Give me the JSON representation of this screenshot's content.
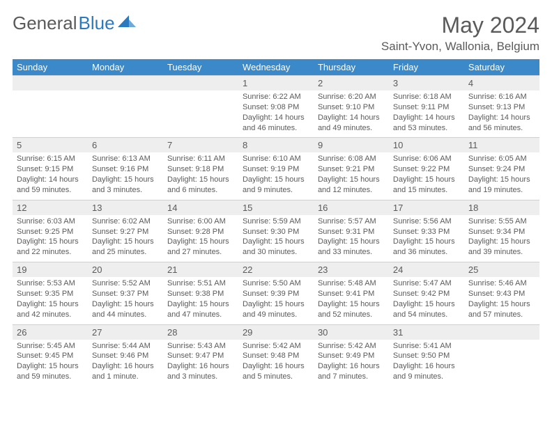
{
  "logo": {
    "textGray": "General",
    "textBlue": "Blue"
  },
  "title": "May 2024",
  "location": "Saint-Yvon, Wallonia, Belgium",
  "colors": {
    "headerBg": "#3b89c9",
    "headerText": "#ffffff",
    "daynumBg": "#eeeeee",
    "border": "#cfcfcf",
    "bodyText": "#5a5a5a",
    "logoBlue": "#2b7ac0"
  },
  "dayNames": [
    "Sunday",
    "Monday",
    "Tuesday",
    "Wednesday",
    "Thursday",
    "Friday",
    "Saturday"
  ],
  "weeks": [
    [
      null,
      null,
      null,
      {
        "n": "1",
        "sr": "6:22 AM",
        "ss": "9:08 PM",
        "dl": "14 hours and 46 minutes."
      },
      {
        "n": "2",
        "sr": "6:20 AM",
        "ss": "9:10 PM",
        "dl": "14 hours and 49 minutes."
      },
      {
        "n": "3",
        "sr": "6:18 AM",
        "ss": "9:11 PM",
        "dl": "14 hours and 53 minutes."
      },
      {
        "n": "4",
        "sr": "6:16 AM",
        "ss": "9:13 PM",
        "dl": "14 hours and 56 minutes."
      }
    ],
    [
      {
        "n": "5",
        "sr": "6:15 AM",
        "ss": "9:15 PM",
        "dl": "14 hours and 59 minutes."
      },
      {
        "n": "6",
        "sr": "6:13 AM",
        "ss": "9:16 PM",
        "dl": "15 hours and 3 minutes."
      },
      {
        "n": "7",
        "sr": "6:11 AM",
        "ss": "9:18 PM",
        "dl": "15 hours and 6 minutes."
      },
      {
        "n": "8",
        "sr": "6:10 AM",
        "ss": "9:19 PM",
        "dl": "15 hours and 9 minutes."
      },
      {
        "n": "9",
        "sr": "6:08 AM",
        "ss": "9:21 PM",
        "dl": "15 hours and 12 minutes."
      },
      {
        "n": "10",
        "sr": "6:06 AM",
        "ss": "9:22 PM",
        "dl": "15 hours and 15 minutes."
      },
      {
        "n": "11",
        "sr": "6:05 AM",
        "ss": "9:24 PM",
        "dl": "15 hours and 19 minutes."
      }
    ],
    [
      {
        "n": "12",
        "sr": "6:03 AM",
        "ss": "9:25 PM",
        "dl": "15 hours and 22 minutes."
      },
      {
        "n": "13",
        "sr": "6:02 AM",
        "ss": "9:27 PM",
        "dl": "15 hours and 25 minutes."
      },
      {
        "n": "14",
        "sr": "6:00 AM",
        "ss": "9:28 PM",
        "dl": "15 hours and 27 minutes."
      },
      {
        "n": "15",
        "sr": "5:59 AM",
        "ss": "9:30 PM",
        "dl": "15 hours and 30 minutes."
      },
      {
        "n": "16",
        "sr": "5:57 AM",
        "ss": "9:31 PM",
        "dl": "15 hours and 33 minutes."
      },
      {
        "n": "17",
        "sr": "5:56 AM",
        "ss": "9:33 PM",
        "dl": "15 hours and 36 minutes."
      },
      {
        "n": "18",
        "sr": "5:55 AM",
        "ss": "9:34 PM",
        "dl": "15 hours and 39 minutes."
      }
    ],
    [
      {
        "n": "19",
        "sr": "5:53 AM",
        "ss": "9:35 PM",
        "dl": "15 hours and 42 minutes."
      },
      {
        "n": "20",
        "sr": "5:52 AM",
        "ss": "9:37 PM",
        "dl": "15 hours and 44 minutes."
      },
      {
        "n": "21",
        "sr": "5:51 AM",
        "ss": "9:38 PM",
        "dl": "15 hours and 47 minutes."
      },
      {
        "n": "22",
        "sr": "5:50 AM",
        "ss": "9:39 PM",
        "dl": "15 hours and 49 minutes."
      },
      {
        "n": "23",
        "sr": "5:48 AM",
        "ss": "9:41 PM",
        "dl": "15 hours and 52 minutes."
      },
      {
        "n": "24",
        "sr": "5:47 AM",
        "ss": "9:42 PM",
        "dl": "15 hours and 54 minutes."
      },
      {
        "n": "25",
        "sr": "5:46 AM",
        "ss": "9:43 PM",
        "dl": "15 hours and 57 minutes."
      }
    ],
    [
      {
        "n": "26",
        "sr": "5:45 AM",
        "ss": "9:45 PM",
        "dl": "15 hours and 59 minutes."
      },
      {
        "n": "27",
        "sr": "5:44 AM",
        "ss": "9:46 PM",
        "dl": "16 hours and 1 minute."
      },
      {
        "n": "28",
        "sr": "5:43 AM",
        "ss": "9:47 PM",
        "dl": "16 hours and 3 minutes."
      },
      {
        "n": "29",
        "sr": "5:42 AM",
        "ss": "9:48 PM",
        "dl": "16 hours and 5 minutes."
      },
      {
        "n": "30",
        "sr": "5:42 AM",
        "ss": "9:49 PM",
        "dl": "16 hours and 7 minutes."
      },
      {
        "n": "31",
        "sr": "5:41 AM",
        "ss": "9:50 PM",
        "dl": "16 hours and 9 minutes."
      },
      null
    ]
  ],
  "labels": {
    "sunrise": "Sunrise:",
    "sunset": "Sunset:",
    "daylight": "Daylight:"
  }
}
